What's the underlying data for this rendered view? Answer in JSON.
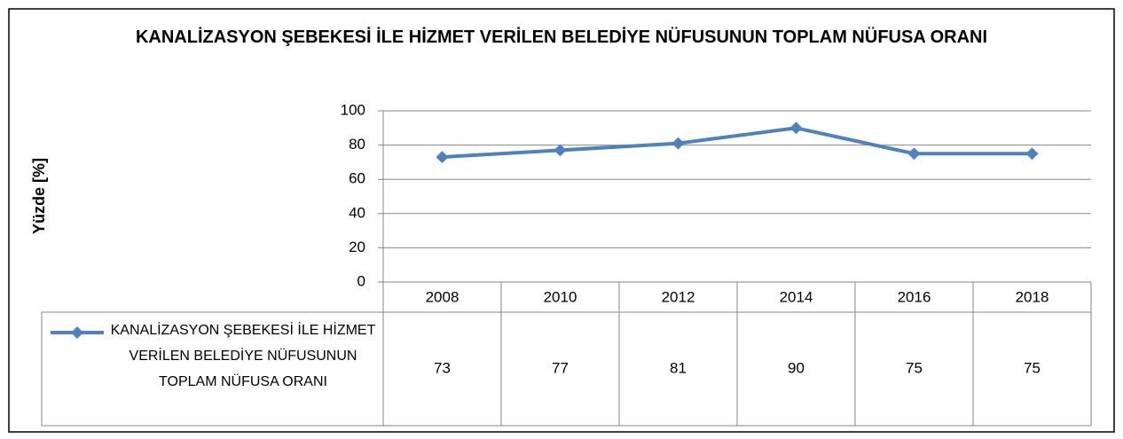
{
  "chart_data": {
    "type": "line",
    "title": "KANALİZASYON ŞEBEKESİ İLE HİZMET VERİLEN BELEDİYE NÜFUSUNUN TOPLAM NÜFUSA ORANI",
    "ylabel": "Yüzde [%]",
    "categories": [
      "2008",
      "2010",
      "2012",
      "2014",
      "2016",
      "2018"
    ],
    "series": [
      {
        "name": "KANALİZASYON ŞEBEKESİ İLE HİZMET VERİLEN BELEDİYE NÜFUSUNUN TOPLAM NÜFUSA ORANI",
        "color": "#4f81bd",
        "values": [
          73,
          77,
          81,
          90,
          75,
          75
        ]
      }
    ],
    "ylim": [
      0,
      100
    ],
    "yticks": [
      0,
      20,
      40,
      60,
      80,
      100
    ],
    "grid": true,
    "data_table": true
  }
}
